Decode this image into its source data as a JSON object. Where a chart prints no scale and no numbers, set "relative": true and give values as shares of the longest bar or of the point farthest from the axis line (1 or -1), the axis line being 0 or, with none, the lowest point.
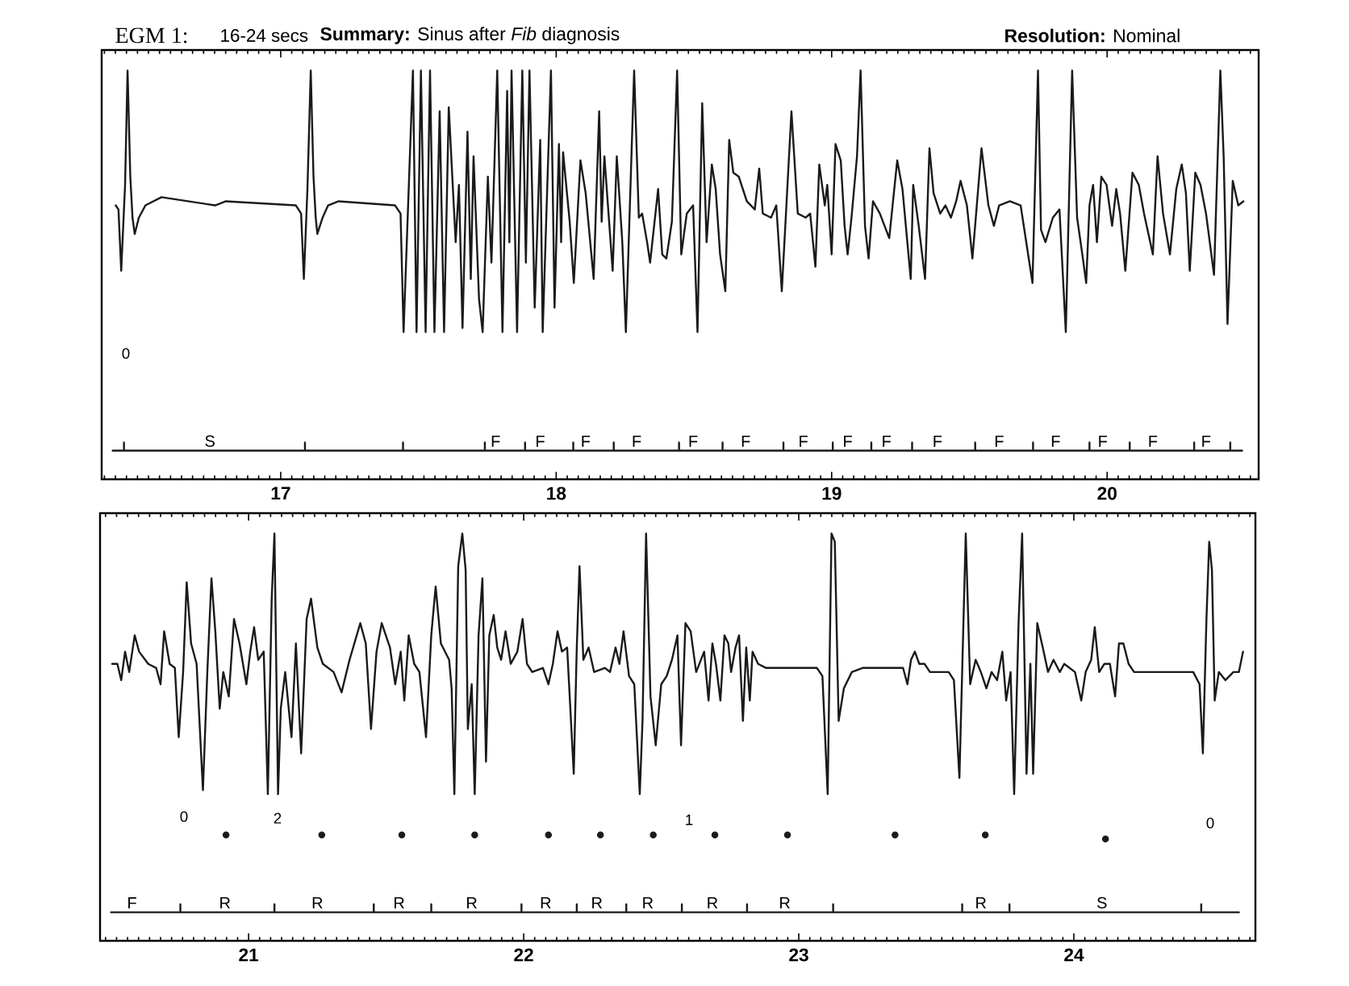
{
  "chart_data": [
    {
      "type": "line",
      "title": "EGM 1:",
      "subtitle": "16-24 secs",
      "relative": true,
      "xlim": [
        16.35,
        20.55
      ],
      "xticks": [
        {
          "value": 16.36,
          "label": null
        },
        {
          "value": 16.4,
          "label": null
        },
        {
          "value": 16.44,
          "label": null
        },
        {
          "value": 16.48,
          "label": null
        },
        {
          "value": 16.52,
          "label": null
        },
        {
          "value": 16.56,
          "label": null
        },
        {
          "value": 16.6,
          "label": null
        },
        {
          "value": 16.64,
          "label": null
        },
        {
          "value": 16.68,
          "label": null
        },
        {
          "value": 16.72,
          "label": null
        },
        {
          "value": 16.76,
          "label": null
        },
        {
          "value": 16.8,
          "label": null
        },
        {
          "value": 16.84,
          "label": null
        },
        {
          "value": 16.88,
          "label": null
        },
        {
          "value": 16.92,
          "label": null
        },
        {
          "value": 16.96,
          "label": null
        },
        17,
        {
          "value": 17.04,
          "label": null
        },
        {
          "value": 17.08,
          "label": null
        },
        {
          "value": 17.12,
          "label": null
        },
        {
          "value": 17.16,
          "label": null
        },
        {
          "value": 17.2,
          "label": null
        },
        {
          "value": 17.24,
          "label": null
        },
        {
          "value": 17.28,
          "label": null
        },
        {
          "value": 17.32,
          "label": null
        },
        {
          "value": 17.36,
          "label": null
        },
        {
          "value": 17.4,
          "label": null
        },
        {
          "value": 17.44,
          "label": null
        },
        {
          "value": 17.48,
          "label": null
        },
        {
          "value": 17.52,
          "label": null
        },
        {
          "value": 17.56,
          "label": null
        },
        {
          "value": 17.6,
          "label": null
        },
        {
          "value": 17.64,
          "label": null
        },
        {
          "value": 17.68,
          "label": null
        },
        {
          "value": 17.72,
          "label": null
        },
        {
          "value": 17.76,
          "label": null
        },
        {
          "value": 17.8,
          "label": null
        },
        {
          "value": 17.84,
          "label": null
        },
        {
          "value": 17.88,
          "label": null
        },
        {
          "value": 17.92,
          "label": null
        },
        {
          "value": 17.96,
          "label": null
        },
        18,
        {
          "value": 18.04,
          "label": null
        },
        {
          "value": 18.08,
          "label": null
        },
        {
          "value": 18.12,
          "label": null
        },
        {
          "value": 18.16,
          "label": null
        },
        {
          "value": 18.2,
          "label": null
        },
        {
          "value": 18.24,
          "label": null
        },
        {
          "value": 18.28,
          "label": null
        },
        {
          "value": 18.32,
          "label": null
        },
        {
          "value": 18.36,
          "label": null
        },
        {
          "value": 18.4,
          "label": null
        },
        {
          "value": 18.44,
          "label": null
        },
        {
          "value": 18.48,
          "label": null
        },
        {
          "value": 18.52,
          "label": null
        },
        {
          "value": 18.56,
          "label": null
        },
        {
          "value": 18.6,
          "label": null
        },
        {
          "value": 18.64,
          "label": null
        },
        {
          "value": 18.68,
          "label": null
        },
        {
          "value": 18.72,
          "label": null
        },
        {
          "value": 18.76,
          "label": null
        },
        {
          "value": 18.8,
          "label": null
        },
        {
          "value": 18.84,
          "label": null
        },
        {
          "value": 18.88,
          "label": null
        },
        {
          "value": 18.92,
          "label": null
        },
        {
          "value": 18.96,
          "label": null
        },
        19,
        {
          "value": 19.04,
          "label": null
        },
        {
          "value": 19.08,
          "label": null
        },
        {
          "value": 19.12,
          "label": null
        },
        {
          "value": 19.16,
          "label": null
        },
        {
          "value": 19.2,
          "label": null
        },
        {
          "value": 19.24,
          "label": null
        },
        {
          "value": 19.28,
          "label": null
        },
        {
          "value": 19.32,
          "label": null
        },
        {
          "value": 19.36,
          "label": null
        },
        {
          "value": 19.4,
          "label": null
        },
        {
          "value": 19.44,
          "label": null
        },
        {
          "value": 19.48,
          "label": null
        },
        {
          "value": 19.52,
          "label": null
        },
        {
          "value": 19.56,
          "label": null
        },
        {
          "value": 19.6,
          "label": null
        },
        {
          "value": 19.64,
          "label": null
        },
        {
          "value": 19.68,
          "label": null
        },
        {
          "value": 19.72,
          "label": null
        },
        {
          "value": 19.76,
          "label": null
        },
        {
          "value": 19.8,
          "label": null
        },
        {
          "value": 19.84,
          "label": null
        },
        {
          "value": 19.88,
          "label": null
        },
        {
          "value": 19.92,
          "label": null
        },
        {
          "value": 19.96,
          "label": null
        },
        20,
        {
          "value": 20.04,
          "label": null
        },
        {
          "value": 20.08,
          "label": null
        },
        {
          "value": 20.12,
          "label": null
        },
        {
          "value": 20.16,
          "label": null
        },
        {
          "value": 20.2,
          "label": null
        },
        {
          "value": 20.24,
          "label": null
        },
        {
          "value": 20.28,
          "label": null
        },
        {
          "value": 20.32,
          "label": null
        },
        {
          "value": 20.36,
          "label": null
        },
        {
          "value": 20.4,
          "label": null
        },
        {
          "value": 20.44,
          "label": null
        },
        {
          "value": 20.48,
          "label": null
        },
        {
          "value": 20.52,
          "label": null
        }
      ],
      "series": [
        {
          "color": "#1a1a1a",
          "x": [
            16.401,
            16.411,
            16.421,
            16.435,
            16.444,
            16.454,
            16.462,
            16.47,
            16.485,
            16.509,
            16.567,
            16.762,
            16.801,
            17.055,
            17.074,
            17.084,
            17.097,
            17.109,
            17.119,
            17.127,
            17.133,
            17.152,
            17.172,
            17.21,
            17.415,
            17.435,
            17.446,
            17.48,
            17.493,
            17.509,
            17.526,
            17.542,
            17.558,
            17.577,
            17.593,
            17.61,
            17.635,
            17.647,
            17.66,
            17.678,
            17.69,
            17.7,
            17.72,
            17.733,
            17.752,
            17.765,
            17.786,
            17.805,
            17.822,
            17.83,
            17.838,
            17.858,
            17.877,
            17.89,
            17.903,
            17.922,
            17.942,
            17.951,
            17.981,
            17.994,
            18.01,
            18.018,
            18.025,
            18.049,
            18.064,
            18.088,
            18.107,
            18.136,
            18.156,
            18.165,
            18.175,
            18.205,
            18.22,
            18.24,
            18.253,
            18.283,
            18.3,
            18.312,
            18.33,
            18.341,
            18.37,
            18.385,
            18.4,
            18.42,
            18.439,
            18.454,
            18.474,
            18.497,
            18.513,
            18.53,
            18.546,
            18.565,
            18.579,
            18.595,
            18.614,
            18.628,
            18.643,
            18.663,
            18.692,
            18.721,
            18.737,
            18.75,
            18.78,
            18.799,
            18.819,
            18.854,
            18.877,
            18.906,
            18.922,
            18.941,
            18.955,
            18.975,
            18.984,
            19.0,
            19.014,
            19.033,
            19.047,
            19.058,
            19.072,
            19.092,
            19.105,
            19.121,
            19.134,
            19.15,
            19.175,
            19.209,
            19.238,
            19.257,
            19.287,
            19.296,
            19.316,
            19.339,
            19.355,
            19.37,
            19.394,
            19.413,
            19.433,
            19.452,
            19.468,
            19.491,
            19.511,
            19.544,
            19.569,
            19.589,
            19.608,
            19.647,
            19.686,
            19.729,
            19.749,
            19.76,
            19.776,
            19.803,
            19.827,
            19.85,
            19.873,
            19.891,
            19.91,
            19.924,
            19.936,
            19.949,
            19.963,
            19.979,
            19.998,
            20.018,
            20.033,
            20.047,
            20.066,
            20.092,
            20.115,
            20.134,
            20.166,
            20.183,
            20.203,
            20.228,
            20.251,
            20.271,
            20.286,
            20.3,
            20.32,
            20.339,
            20.359,
            20.388,
            20.411,
            20.423,
            20.437,
            20.456,
            20.476,
            20.495
          ],
          "values": [
            0.67,
            0.66,
            0.51,
            0.72,
            1,
            0.74,
            0.64,
            0.6,
            0.64,
            0.67,
            0.69,
            0.67,
            0.68,
            0.67,
            0.65,
            0.49,
            0.71,
            1,
            0.74,
            0.64,
            0.6,
            0.64,
            0.67,
            0.68,
            0.67,
            0.65,
            0.36,
            1,
            0.36,
            1,
            0.36,
            1,
            0.36,
            0.9,
            0.36,
            0.91,
            0.58,
            0.72,
            0.37,
            0.85,
            0.49,
            0.79,
            0.44,
            0.36,
            0.74,
            0.53,
            1,
            0.36,
            0.95,
            0.58,
            1,
            0.36,
            1,
            0.53,
            1,
            0.42,
            0.83,
            0.36,
            1,
            0.42,
            0.82,
            0.58,
            0.8,
            0.63,
            0.48,
            0.78,
            0.7,
            0.49,
            0.9,
            0.63,
            0.79,
            0.51,
            0.79,
            0.58,
            0.36,
            1,
            0.64,
            0.65,
            0.58,
            0.53,
            0.71,
            0.55,
            0.54,
            0.63,
            1,
            0.55,
            0.65,
            0.67,
            0.36,
            0.92,
            0.58,
            0.77,
            0.71,
            0.55,
            0.46,
            0.83,
            0.75,
            0.74,
            0.68,
            0.66,
            0.76,
            0.65,
            0.64,
            0.67,
            0.46,
            0.9,
            0.65,
            0.64,
            0.65,
            0.52,
            0.77,
            0.67,
            0.72,
            0.55,
            0.82,
            0.78,
            0.62,
            0.55,
            0.64,
            0.79,
            1,
            0.62,
            0.54,
            0.68,
            0.65,
            0.59,
            0.78,
            0.71,
            0.49,
            0.72,
            0.62,
            0.49,
            0.81,
            0.7,
            0.65,
            0.67,
            0.64,
            0.68,
            0.73,
            0.67,
            0.54,
            0.81,
            0.67,
            0.62,
            0.67,
            0.68,
            0.67,
            0.48,
            1,
            0.61,
            0.58,
            0.64,
            0.66,
            0.36,
            1,
            0.64,
            0.55,
            0.48,
            0.67,
            0.72,
            0.58,
            0.74,
            0.72,
            0.62,
            0.71,
            0.65,
            0.51,
            0.75,
            0.72,
            0.65,
            0.55,
            0.79,
            0.65,
            0.55,
            0.71,
            0.77,
            0.7,
            0.51,
            0.75,
            0.72,
            0.65,
            0.5,
            1,
            0.79,
            0.38,
            0.73,
            0.67,
            0.68
          ]
        },
        {
          "color": "#1a1a1a",
          "x": [
            16.39,
            16.431,
            16.431,
            16.431,
            16.743,
            17.088,
            17.088,
            17.088,
            17.444,
            17.444,
            17.444,
            17.741,
            17.741,
            17.741,
            17.78,
            17.887,
            17.887,
            17.887,
            17.942,
            18.062,
            18.062,
            18.062,
            18.107,
            18.209,
            18.209,
            18.209,
            18.292,
            18.446,
            18.446,
            18.446,
            18.497,
            18.604,
            18.604,
            18.604,
            18.688,
            18.825,
            18.825,
            18.825,
            18.897,
            19.004,
            19.004,
            19.004,
            19.058,
            19.144,
            19.144,
            19.144,
            19.199,
            19.292,
            19.292,
            19.292,
            19.384,
            19.521,
            19.521,
            19.521,
            19.608,
            19.731,
            19.731,
            19.731,
            19.813,
            19.936,
            19.936,
            19.936,
            19.984,
            20.082,
            20.082,
            20.082,
            20.166,
            20.316,
            20.316,
            20.316,
            20.359,
            20.447,
            20.447,
            20.447,
            20.49
          ],
          "values": [
            0.07,
            0.07,
            0.09,
            0.07,
            0.07,
            0.07,
            0.09,
            0.07,
            0.07,
            0.09,
            0.07,
            0.07,
            0.09,
            0.07,
            0.07,
            0.07,
            0.09,
            0.07,
            0.07,
            0.07,
            0.09,
            0.07,
            0.07,
            0.07,
            0.09,
            0.07,
            0.07,
            0.07,
            0.09,
            0.07,
            0.07,
            0.07,
            0.09,
            0.07,
            0.07,
            0.07,
            0.09,
            0.07,
            0.07,
            0.07,
            0.09,
            0.07,
            0.07,
            0.07,
            0.09,
            0.07,
            0.07,
            0.07,
            0.09,
            0.07,
            0.07,
            0.07,
            0.09,
            0.07,
            0.07,
            0.07,
            0.09,
            0.07,
            0.07,
            0.07,
            0.09,
            0.07,
            0.07,
            0.07,
            0.09,
            0.07,
            0.07,
            0.07,
            0.09,
            0.07,
            0.07,
            0.07,
            0.09,
            0.07,
            0.07
          ]
        }
      ],
      "annotations": [
        "**Summary:** Sinus after *Fib* diagnosis",
        "**Resolution:** Nominal",
        "0",
        {
          "text": "S",
          "x": 16.743,
          "y": 0.07
        },
        {
          "text": "F",
          "x": 17.78,
          "y": 0.07
        },
        {
          "text": "F",
          "x": 17.942,
          "y": 0.07
        },
        {
          "text": "F",
          "x": 18.107,
          "y": 0.07
        },
        {
          "text": "F",
          "x": 18.292,
          "y": 0.07
        },
        {
          "text": "F",
          "x": 18.497,
          "y": 0.07
        },
        {
          "text": "F",
          "x": 18.688,
          "y": 0.07
        },
        {
          "text": "F",
          "x": 18.897,
          "y": 0.07
        },
        {
          "text": "F",
          "x": 19.058,
          "y": 0.07
        },
        {
          "text": "F",
          "x": 19.199,
          "y": 0.07
        },
        {
          "text": "F",
          "x": 19.384,
          "y": 0.07
        },
        {
          "text": "F",
          "x": 19.608,
          "y": 0.07
        },
        {
          "text": "F",
          "x": 19.813,
          "y": 0.07
        },
        {
          "text": "F",
          "x": 19.984,
          "y": 0.07
        },
        {
          "text": "F",
          "x": 20.166,
          "y": 0.07
        },
        {
          "text": "F",
          "x": 20.359,
          "y": 0.07
        }
      ]
    },
    {
      "type": "line",
      "relative": true,
      "xlim": [
        20.46,
        24.66
      ],
      "xticks": [
        {
          "value": 20.48,
          "label": null
        },
        {
          "value": 20.52,
          "label": null
        },
        {
          "value": 20.56,
          "label": null
        },
        {
          "value": 20.6,
          "label": null
        },
        {
          "value": 20.64,
          "label": null
        },
        {
          "value": 20.68,
          "label": null
        },
        {
          "value": 20.72,
          "label": null
        },
        {
          "value": 20.76,
          "label": null
        },
        {
          "value": 20.8,
          "label": null
        },
        {
          "value": 20.84,
          "label": null
        },
        {
          "value": 20.88,
          "label": null
        },
        {
          "value": 20.92,
          "label": null
        },
        {
          "value": 20.96,
          "label": null
        },
        21,
        {
          "value": 21.04,
          "label": null
        },
        {
          "value": 21.08,
          "label": null
        },
        {
          "value": 21.12,
          "label": null
        },
        {
          "value": 21.16,
          "label": null
        },
        {
          "value": 21.2,
          "label": null
        },
        {
          "value": 21.24,
          "label": null
        },
        {
          "value": 21.28,
          "label": null
        },
        {
          "value": 21.32,
          "label": null
        },
        {
          "value": 21.36,
          "label": null
        },
        {
          "value": 21.4,
          "label": null
        },
        {
          "value": 21.44,
          "label": null
        },
        {
          "value": 21.48,
          "label": null
        },
        {
          "value": 21.52,
          "label": null
        },
        {
          "value": 21.56,
          "label": null
        },
        {
          "value": 21.6,
          "label": null
        },
        {
          "value": 21.64,
          "label": null
        },
        {
          "value": 21.68,
          "label": null
        },
        {
          "value": 21.72,
          "label": null
        },
        {
          "value": 21.76,
          "label": null
        },
        {
          "value": 21.8,
          "label": null
        },
        {
          "value": 21.84,
          "label": null
        },
        {
          "value": 21.88,
          "label": null
        },
        {
          "value": 21.92,
          "label": null
        },
        {
          "value": 21.96,
          "label": null
        },
        22,
        {
          "value": 22.04,
          "label": null
        },
        {
          "value": 22.08,
          "label": null
        },
        {
          "value": 22.12,
          "label": null
        },
        {
          "value": 22.16,
          "label": null
        },
        {
          "value": 22.2,
          "label": null
        },
        {
          "value": 22.24,
          "label": null
        },
        {
          "value": 22.28,
          "label": null
        },
        {
          "value": 22.32,
          "label": null
        },
        {
          "value": 22.36,
          "label": null
        },
        {
          "value": 22.4,
          "label": null
        },
        {
          "value": 22.44,
          "label": null
        },
        {
          "value": 22.48,
          "label": null
        },
        {
          "value": 22.52,
          "label": null
        },
        {
          "value": 22.56,
          "label": null
        },
        {
          "value": 22.6,
          "label": null
        },
        {
          "value": 22.64,
          "label": null
        },
        {
          "value": 22.68,
          "label": null
        },
        {
          "value": 22.72,
          "label": null
        },
        {
          "value": 22.76,
          "label": null
        },
        {
          "value": 22.8,
          "label": null
        },
        {
          "value": 22.84,
          "label": null
        },
        {
          "value": 22.88,
          "label": null
        },
        {
          "value": 22.92,
          "label": null
        },
        {
          "value": 22.96,
          "label": null
        },
        23,
        {
          "value": 23.04,
          "label": null
        },
        {
          "value": 23.08,
          "label": null
        },
        {
          "value": 23.12,
          "label": null
        },
        {
          "value": 23.16,
          "label": null
        },
        {
          "value": 23.2,
          "label": null
        },
        {
          "value": 23.24,
          "label": null
        },
        {
          "value": 23.28,
          "label": null
        },
        {
          "value": 23.32,
          "label": null
        },
        {
          "value": 23.36,
          "label": null
        },
        {
          "value": 23.4,
          "label": null
        },
        {
          "value": 23.44,
          "label": null
        },
        {
          "value": 23.48,
          "label": null
        },
        {
          "value": 23.52,
          "label": null
        },
        {
          "value": 23.56,
          "label": null
        },
        {
          "value": 23.6,
          "label": null
        },
        {
          "value": 23.64,
          "label": null
        },
        {
          "value": 23.68,
          "label": null
        },
        {
          "value": 23.72,
          "label": null
        },
        {
          "value": 23.76,
          "label": null
        },
        {
          "value": 23.8,
          "label": null
        },
        {
          "value": 23.84,
          "label": null
        },
        {
          "value": 23.88,
          "label": null
        },
        {
          "value": 23.92,
          "label": null
        },
        {
          "value": 23.96,
          "label": null
        },
        24,
        {
          "value": 24.04,
          "label": null
        },
        {
          "value": 24.08,
          "label": null
        },
        {
          "value": 24.12,
          "label": null
        },
        {
          "value": 24.16,
          "label": null
        },
        {
          "value": 24.2,
          "label": null
        },
        {
          "value": 24.24,
          "label": null
        },
        {
          "value": 24.28,
          "label": null
        },
        {
          "value": 24.32,
          "label": null
        },
        {
          "value": 24.36,
          "label": null
        },
        {
          "value": 24.4,
          "label": null
        },
        {
          "value": 24.44,
          "label": null
        },
        {
          "value": 24.48,
          "label": null
        },
        {
          "value": 24.52,
          "label": null
        },
        {
          "value": 24.56,
          "label": null
        },
        {
          "value": 24.6,
          "label": null
        },
        {
          "value": 24.64,
          "label": null
        }
      ],
      "series": [
        {
          "color": "#1a1a1a",
          "x": [
            20.504,
            20.523,
            20.537,
            20.551,
            20.566,
            20.586,
            20.602,
            20.635,
            20.664,
            20.68,
            20.693,
            20.713,
            20.732,
            20.746,
            20.762,
            20.775,
            20.791,
            20.811,
            20.834,
            20.85,
            20.865,
            20.879,
            20.895,
            20.908,
            20.928,
            20.947,
            20.967,
            20.992,
            21.006,
            21.02,
            21.035,
            21.055,
            21.07,
            21.084,
            21.094,
            21.107,
            21.117,
            21.133,
            21.156,
            21.172,
            21.191,
            21.211,
            21.227,
            21.25,
            21.27,
            21.309,
            21.338,
            21.367,
            21.406,
            21.426,
            21.445,
            21.465,
            21.484,
            21.514,
            21.533,
            21.553,
            21.566,
            21.582,
            21.602,
            21.621,
            21.645,
            21.664,
            21.68,
            21.699,
            21.729,
            21.738,
            21.748,
            21.762,
            21.777,
            21.789,
            21.797,
            21.811,
            21.822,
            21.836,
            21.85,
            21.863,
            21.875,
            21.891,
            21.904,
            21.918,
            21.934,
            21.953,
            21.977,
            21.996,
            22.012,
            22.031,
            22.07,
            22.09,
            22.106,
            22.123,
            22.139,
            22.158,
            22.182,
            22.193,
            22.203,
            22.217,
            22.236,
            22.256,
            22.295,
            22.314,
            22.334,
            22.348,
            22.363,
            22.383,
            22.402,
            22.422,
            22.432,
            22.445,
            22.461,
            22.48,
            22.5,
            22.52,
            22.539,
            22.559,
            22.572,
            22.588,
            22.607,
            22.627,
            22.656,
            22.672,
            22.686,
            22.699,
            22.715,
            22.73,
            22.744,
            22.754,
            22.77,
            22.783,
            22.797,
            22.809,
            22.822,
            22.832,
            22.852,
            22.881,
            23.066,
            23.086,
            23.105,
            23.119,
            23.131,
            23.145,
            23.164,
            23.193,
            23.232,
            23.379,
            23.395,
            23.408,
            23.422,
            23.438,
            23.457,
            23.477,
            23.545,
            23.564,
            23.584,
            23.607,
            23.623,
            23.643,
            23.662,
            23.682,
            23.701,
            23.721,
            23.74,
            23.754,
            23.77,
            23.783,
            23.799,
            23.812,
            23.828,
            23.842,
            23.852,
            23.867,
            23.887,
            23.906,
            23.926,
            23.949,
            23.965,
            24.004,
            24.027,
            24.043,
            24.063,
            24.076,
            24.092,
            24.111,
            24.131,
            24.15,
            24.164,
            24.18,
            24.199,
            24.219,
            24.238,
            24.434,
            24.457,
            24.469,
            24.482,
            24.492,
            24.502,
            24.512,
            24.527,
            24.551,
            24.58,
            24.6,
            24.615
          ],
          "values": [
            0.68,
            0.68,
            0.64,
            0.71,
            0.66,
            0.75,
            0.71,
            0.68,
            0.67,
            0.63,
            0.76,
            0.68,
            0.67,
            0.5,
            0.66,
            0.88,
            0.73,
            0.68,
            0.37,
            0.66,
            0.89,
            0.76,
            0.57,
            0.66,
            0.6,
            0.79,
            0.73,
            0.63,
            0.71,
            0.77,
            0.69,
            0.71,
            0.36,
            0.84,
            1,
            0.36,
            0.57,
            0.66,
            0.5,
            0.73,
            0.46,
            0.79,
            0.84,
            0.72,
            0.68,
            0.66,
            0.61,
            0.69,
            0.78,
            0.73,
            0.52,
            0.71,
            0.78,
            0.72,
            0.63,
            0.71,
            0.59,
            0.75,
            0.68,
            0.66,
            0.5,
            0.75,
            0.87,
            0.73,
            0.69,
            0.62,
            0.36,
            0.92,
            1,
            0.91,
            0.52,
            0.63,
            0.36,
            0.75,
            0.89,
            0.44,
            0.75,
            0.8,
            0.72,
            0.69,
            0.76,
            0.68,
            0.71,
            0.79,
            0.68,
            0.66,
            0.67,
            0.63,
            0.68,
            0.76,
            0.71,
            0.72,
            0.41,
            0.72,
            0.92,
            0.69,
            0.72,
            0.66,
            0.67,
            0.66,
            0.72,
            0.68,
            0.76,
            0.65,
            0.63,
            0.36,
            0.54,
            1,
            0.6,
            0.48,
            0.63,
            0.65,
            0.69,
            0.75,
            0.48,
            0.78,
            0.76,
            0.66,
            0.71,
            0.59,
            0.73,
            0.68,
            0.59,
            0.75,
            0.73,
            0.66,
            0.72,
            0.75,
            0.54,
            0.72,
            0.59,
            0.71,
            0.68,
            0.67,
            0.67,
            0.65,
            0.36,
            1,
            0.98,
            0.54,
            0.62,
            0.66,
            0.67,
            0.67,
            0.63,
            0.69,
            0.71,
            0.68,
            0.68,
            0.66,
            0.66,
            0.64,
            0.4,
            1,
            0.63,
            0.69,
            0.66,
            0.62,
            0.66,
            0.64,
            0.71,
            0.59,
            0.66,
            0.36,
            0.78,
            1,
            0.41,
            0.68,
            0.41,
            0.78,
            0.72,
            0.66,
            0.69,
            0.66,
            0.68,
            0.66,
            0.59,
            0.66,
            0.69,
            0.77,
            0.66,
            0.68,
            0.68,
            0.6,
            0.73,
            0.73,
            0.68,
            0.66,
            0.66,
            0.66,
            0.63,
            0.46,
            0.79,
            0.98,
            0.91,
            0.59,
            0.66,
            0.64,
            0.66,
            0.66,
            0.71
          ]
        },
        {
          "color": "#1a1a1a",
          "x": [
            20.5,
            20.576,
            20.752,
            20.752,
            20.752,
            20.914,
            21.094,
            21.094,
            21.094,
            21.25,
            21.455,
            21.455,
            21.455,
            21.547,
            21.664,
            21.664,
            21.664,
            21.811,
            21.992,
            21.992,
            21.992,
            22.08,
            22.193,
            22.193,
            22.193,
            22.266,
            22.373,
            22.373,
            22.373,
            22.451,
            22.575,
            22.575,
            22.575,
            22.686,
            22.812,
            22.812,
            22.812,
            22.949,
            23.125,
            23.125,
            23.125,
            23.594,
            23.594,
            23.594,
            23.662,
            23.766,
            23.766,
            23.766,
            24.102,
            24.463,
            24.463,
            24.463,
            24.6
          ],
          "values": [
            0.07,
            0.07,
            0.07,
            0.09,
            0.07,
            0.07,
            0.07,
            0.09,
            0.07,
            0.07,
            0.07,
            0.09,
            0.07,
            0.07,
            0.07,
            0.09,
            0.07,
            0.07,
            0.07,
            0.09,
            0.07,
            0.07,
            0.07,
            0.09,
            0.07,
            0.07,
            0.07,
            0.09,
            0.07,
            0.07,
            0.07,
            0.09,
            0.07,
            0.07,
            0.07,
            0.09,
            0.07,
            0.07,
            0.07,
            0.09,
            0.07,
            0.07,
            0.09,
            0.07,
            0.07,
            0.07,
            0.09,
            0.07,
            0.07,
            0.07,
            0.09,
            0.07,
            0.07
          ]
        },
        {
          "type": "scatter",
          "marker": "circle",
          "color": "#1a1a1a",
          "x": [
            20.918,
            21.266,
            21.557,
            21.822,
            22.09,
            22.279,
            22.471,
            22.695,
            22.959,
            23.35,
            23.678,
            24.115
          ],
          "values": [
            0.26,
            0.26,
            0.26,
            0.26,
            0.26,
            0.26,
            0.26,
            0.26,
            0.26,
            0.26,
            0.26,
            0.25
          ]
        }
      ],
      "annotations": [
        "0",
        "2",
        "1",
        "0",
        {
          "text": "F",
          "x": 20.576,
          "y": 0.07
        },
        {
          "text": "R",
          "x": 20.914,
          "y": 0.07
        },
        {
          "text": "R",
          "x": 21.25,
          "y": 0.07
        },
        {
          "text": "R",
          "x": 21.547,
          "y": 0.07
        },
        {
          "text": "R",
          "x": 21.811,
          "y": 0.07
        },
        {
          "text": "R",
          "x": 22.08,
          "y": 0.07
        },
        {
          "text": "R",
          "x": 22.266,
          "y": 0.07
        },
        {
          "text": "R",
          "x": 22.451,
          "y": 0.07
        },
        {
          "text": "R",
          "x": 22.686,
          "y": 0.07
        },
        {
          "text": "R",
          "x": 22.949,
          "y": 0.07
        },
        {
          "text": "R",
          "x": 23.662,
          "y": 0.07
        },
        {
          "text": "S",
          "x": 24.102,
          "y": 0.07
        }
      ]
    }
  ]
}
